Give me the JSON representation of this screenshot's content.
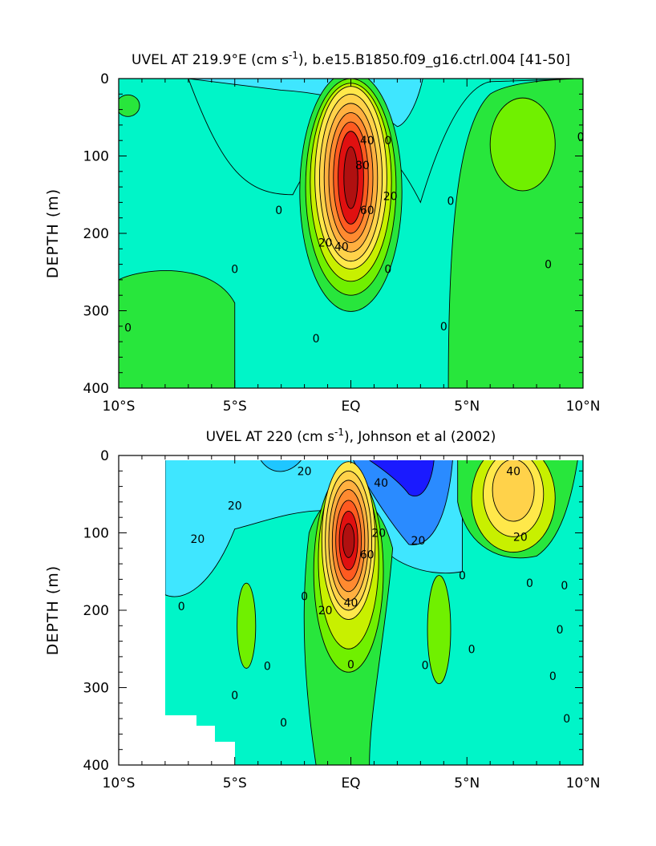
{
  "colors": {
    "background_field": "#00f5c8",
    "strong_westward": "#1a1aff",
    "westward": "#2a8bff",
    "weak_westward": "#3fe6ff",
    "weak_eastward": "#28e63c",
    "eastward": "#70f000",
    "moderate_eastward": "#c8f000",
    "strong_eastward": "#ffd24a",
    "core": "#e01010",
    "core_dark": "#b01010"
  },
  "chart_data": [
    {
      "type": "contour",
      "title": "UVEL AT 219.9°E (cm s",
      "title_superscript": "-1",
      "title_suffix": "), b.e15.B1850.f09_g16.ctrl.004 [41-50]",
      "ylabel": "DEPTH (m)",
      "x_ticks": [
        "10°S",
        "5°S",
        "EQ",
        "5°N",
        "10°N"
      ],
      "x_range": [
        -10,
        10
      ],
      "y_ticks": [
        "0",
        "100",
        "200",
        "300",
        "400"
      ],
      "y_range": [
        0,
        400
      ],
      "contour_interval": 10,
      "contour_labels": [
        {
          "text": "40",
          "lat": 0.7,
          "depth": 80
        },
        {
          "text": "80",
          "lat": 0.5,
          "depth": 112
        },
        {
          "text": "20",
          "lat": 1.7,
          "depth": 152
        },
        {
          "text": "60",
          "lat": 0.7,
          "depth": 170
        },
        {
          "text": "20",
          "lat": -1.1,
          "depth": 212
        },
        {
          "text": "40",
          "lat": -0.4,
          "depth": 217
        },
        {
          "text": "0",
          "lat": 1.6,
          "depth": 80
        },
        {
          "text": "0",
          "lat": -3.1,
          "depth": 170
        },
        {
          "text": "0",
          "lat": 4.3,
          "depth": 158
        },
        {
          "text": "0",
          "lat": -5.0,
          "depth": 246
        },
        {
          "text": "0",
          "lat": 1.6,
          "depth": 246
        },
        {
          "text": "0",
          "lat": 8.5,
          "depth": 240
        },
        {
          "text": "0",
          "lat": -9.6,
          "depth": 322
        },
        {
          "text": "0",
          "lat": -1.5,
          "depth": 336
        },
        {
          "text": "0",
          "lat": 4.0,
          "depth": 320
        },
        {
          "text": "0",
          "lat": 9.9,
          "depth": 75
        }
      ],
      "features": [
        {
          "name": "Equatorial Undercurrent core",
          "center_lat": 0.0,
          "center_depth": 128,
          "max_value": 90
        }
      ]
    },
    {
      "type": "contour",
      "title": "UVEL AT 220 (cm s",
      "title_superscript": "-1",
      "title_suffix": "), Johnson et al (2002)",
      "ylabel": "DEPTH (m)",
      "x_ticks": [
        "10°S",
        "5°S",
        "EQ",
        "5°N",
        "10°N"
      ],
      "x_range": [
        -10,
        10
      ],
      "y_ticks": [
        "0",
        "100",
        "200",
        "300",
        "400"
      ],
      "y_range": [
        0,
        400
      ],
      "contour_interval": 10,
      "contour_labels": [
        {
          "text": "20",
          "lat": -2.0,
          "depth": 20
        },
        {
          "text": "40",
          "lat": 1.3,
          "depth": 35
        },
        {
          "text": "20",
          "lat": -5.0,
          "depth": 65
        },
        {
          "text": "20",
          "lat": -6.6,
          "depth": 108
        },
        {
          "text": "20",
          "lat": 1.2,
          "depth": 100
        },
        {
          "text": "20",
          "lat": 2.9,
          "depth": 110
        },
        {
          "text": "60",
          "lat": 0.7,
          "depth": 128
        },
        {
          "text": "40",
          "lat": 0.0,
          "depth": 190
        },
        {
          "text": "20",
          "lat": -1.1,
          "depth": 200
        },
        {
          "text": "40",
          "lat": 7.0,
          "depth": 20
        },
        {
          "text": "20",
          "lat": 7.3,
          "depth": 105
        },
        {
          "text": "0",
          "lat": 4.8,
          "depth": 155
        },
        {
          "text": "0",
          "lat": -2.0,
          "depth": 182
        },
        {
          "text": "0",
          "lat": -7.3,
          "depth": 195
        },
        {
          "text": "0",
          "lat": 7.7,
          "depth": 165
        },
        {
          "text": "0",
          "lat": 9.2,
          "depth": 168
        },
        {
          "text": "0",
          "lat": 9.0,
          "depth": 225
        },
        {
          "text": "0",
          "lat": 5.2,
          "depth": 250
        },
        {
          "text": "0",
          "lat": -3.6,
          "depth": 272
        },
        {
          "text": "0",
          "lat": 3.2,
          "depth": 271
        },
        {
          "text": "0",
          "lat": 0.0,
          "depth": 270
        },
        {
          "text": "0",
          "lat": 8.7,
          "depth": 285
        },
        {
          "text": "0",
          "lat": -5.0,
          "depth": 310
        },
        {
          "text": "0",
          "lat": -2.9,
          "depth": 345
        },
        {
          "text": "0",
          "lat": 9.3,
          "depth": 340
        }
      ],
      "features": [
        {
          "name": "Equatorial Undercurrent core",
          "center_lat": -0.1,
          "center_depth": 110,
          "max_value": 90
        },
        {
          "name": "South Equatorial Current",
          "center_lat": 2.5,
          "center_depth": 15,
          "max_value": -60
        },
        {
          "name": "North Equatorial Countercurrent",
          "center_lat": 7.0,
          "center_depth": 50,
          "max_value": 50
        }
      ]
    }
  ]
}
